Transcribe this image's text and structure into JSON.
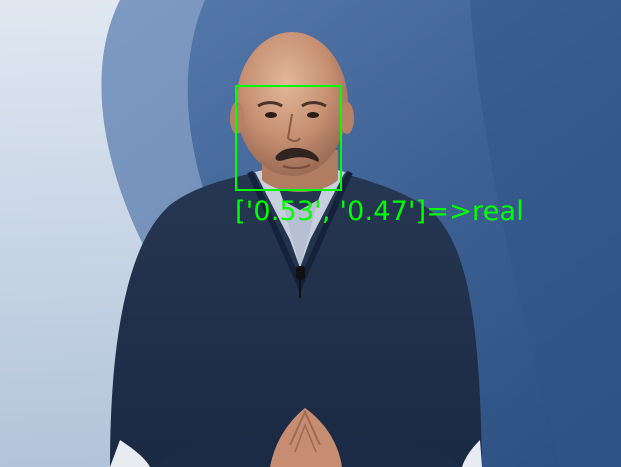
{
  "detection": {
    "label": "['0.53', '0.47']=>real",
    "box_color": "#00ff00"
  },
  "scene": {
    "background_color": "#3e6193",
    "sweep_color": "#d8e2ee"
  }
}
